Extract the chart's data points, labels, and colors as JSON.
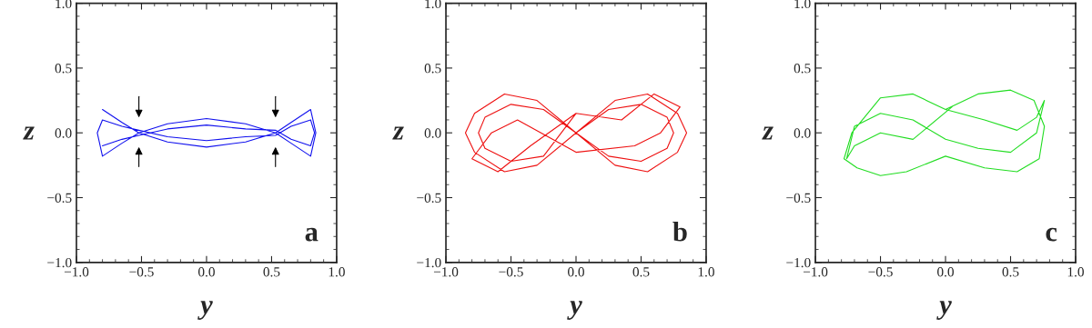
{
  "chart_data": [
    {
      "type": "line",
      "xlabel": "y",
      "ylabel": "z",
      "annotations": [
        "a"
      ],
      "xlim": [
        -1,
        1
      ],
      "ylim": [
        -1,
        1
      ],
      "xticks": [
        {
          "value": -1,
          "label": "−1.0"
        },
        {
          "value": -0.5,
          "label": "−0.5"
        },
        {
          "value": 0,
          "label": "0.0"
        },
        {
          "value": 0.5,
          "label": "0.5"
        },
        {
          "value": 1,
          "label": "1.0"
        }
      ],
      "yticks": [
        {
          "value": -1,
          "label": "−1.0"
        },
        {
          "value": -0.5,
          "label": "−0.5"
        },
        {
          "value": 0,
          "label": "0.0"
        },
        {
          "value": 0.5,
          "label": "0.5"
        },
        {
          "value": 1,
          "label": "1.0"
        }
      ],
      "series": [
        {
          "color": "#1010ee",
          "x": [
            -0.8,
            -0.65,
            -0.52,
            -0.3,
            0,
            0.3,
            0.53,
            0.65,
            0.8,
            0.84,
            0.8,
            0.65,
            0.53,
            0.3,
            0,
            -0.3,
            -0.52,
            -0.65,
            -0.8,
            -0.84,
            -0.8,
            -0.65,
            -0.52,
            -0.3,
            0,
            0.3,
            0.53,
            0.65,
            0.8,
            0.83,
            0.8,
            0.65,
            0.53,
            0.3,
            0,
            -0.3,
            -0.52,
            -0.65,
            -0.8
          ],
          "values": [
            0.18,
            0.08,
            0,
            -0.07,
            -0.11,
            -0.07,
            0,
            0.08,
            0.18,
            0,
            -0.18,
            -0.08,
            0,
            0.07,
            0.11,
            0.07,
            0,
            -0.08,
            -0.18,
            0,
            0.1,
            0.05,
            0.02,
            -0.03,
            -0.06,
            -0.03,
            -0.02,
            0.05,
            0.1,
            0,
            -0.1,
            -0.05,
            0.02,
            0.03,
            0.06,
            0.03,
            -0.02,
            -0.05,
            -0.1
          ]
        }
      ]
    },
    {
      "type": "line",
      "xlabel": "y",
      "ylabel": "z",
      "annotations": [
        "b"
      ],
      "xlim": [
        -1,
        1
      ],
      "ylim": [
        -1,
        1
      ],
      "xticks": [
        {
          "value": -1,
          "label": "−1.0"
        },
        {
          "value": -0.5,
          "label": "−0.5"
        },
        {
          "value": 0,
          "label": "0.0"
        },
        {
          "value": 0.5,
          "label": "0.5"
        },
        {
          "value": 1,
          "label": "1.0"
        }
      ],
      "yticks": [
        {
          "value": -1,
          "label": "−1.0"
        },
        {
          "value": -0.5,
          "label": "−0.5"
        },
        {
          "value": 0,
          "label": "0.0"
        },
        {
          "value": 0.5,
          "label": "0.5"
        },
        {
          "value": 1,
          "label": "1.0"
        }
      ],
      "series": [
        {
          "color": "#ee1111",
          "x": [
            0,
            0.3,
            0.55,
            0.78,
            0.85,
            0.78,
            0.55,
            0.3,
            0,
            -0.3,
            -0.55,
            -0.78,
            -0.85,
            -0.78,
            -0.55,
            -0.3,
            0,
            0.25,
            0.5,
            0.7,
            0.75,
            0.7,
            0.5,
            0.25,
            0,
            -0.25,
            -0.5,
            -0.7,
            -0.75,
            -0.7,
            -0.5,
            -0.25,
            0,
            0.35,
            0.6,
            0.8,
            0.65,
            0.45,
            0,
            -0.45,
            -0.65,
            -0.8,
            -0.6,
            -0.35,
            0
          ],
          "values": [
            0,
            0.25,
            0.3,
            0.15,
            0,
            -0.15,
            -0.3,
            -0.25,
            0,
            0.25,
            0.3,
            0.15,
            0,
            -0.15,
            -0.3,
            -0.25,
            0,
            0.18,
            0.22,
            0.12,
            0,
            -0.12,
            -0.22,
            -0.18,
            0,
            0.18,
            0.22,
            0.12,
            0,
            -0.12,
            -0.22,
            -0.18,
            0.15,
            0.1,
            0.3,
            0.2,
            0.0,
            -0.1,
            -0.15,
            0.1,
            0.0,
            -0.2,
            -0.3,
            -0.1,
            0.15
          ]
        }
      ]
    },
    {
      "type": "line",
      "xlabel": "y",
      "ylabel": "z",
      "annotations": [
        "c"
      ],
      "xlim": [
        -1,
        1
      ],
      "ylim": [
        -1,
        1
      ],
      "xticks": [
        {
          "value": -1,
          "label": "−1.0"
        },
        {
          "value": -0.5,
          "label": "−0.5"
        },
        {
          "value": 0,
          "label": "0.0"
        },
        {
          "value": 0.5,
          "label": "0.5"
        },
        {
          "value": 1,
          "label": "1.0"
        }
      ],
      "yticks": [
        {
          "value": -1,
          "label": "−1.0"
        },
        {
          "value": -0.5,
          "label": "−0.5"
        },
        {
          "value": 0,
          "label": "0.0"
        },
        {
          "value": 0.5,
          "label": "0.5"
        },
        {
          "value": 1,
          "label": "1.0"
        }
      ],
      "series": [
        {
          "color": "#22dd22",
          "x": [
            0,
            0.25,
            0.5,
            0.68,
            0.76,
            0.72,
            0.55,
            0.3,
            0,
            -0.3,
            -0.5,
            -0.68,
            -0.78,
            -0.72,
            -0.5,
            -0.25,
            0,
            0.3,
            0.55,
            0.7,
            0.76,
            0.7,
            0.5,
            0.25,
            0,
            -0.25,
            -0.5,
            -0.7,
            -0.76,
            -0.7,
            -0.5,
            -0.25,
            0.05
          ],
          "values": [
            0.18,
            0.3,
            0.33,
            0.25,
            0.05,
            -0.2,
            -0.3,
            -0.27,
            -0.18,
            -0.3,
            -0.33,
            -0.27,
            -0.2,
            0.0,
            0.27,
            0.3,
            0.18,
            0.1,
            0.02,
            0.12,
            0.25,
            0.0,
            -0.15,
            -0.12,
            -0.05,
            0.1,
            0.15,
            0.05,
            -0.2,
            -0.1,
            0.0,
            -0.05,
            0.2
          ]
        }
      ]
    }
  ]
}
